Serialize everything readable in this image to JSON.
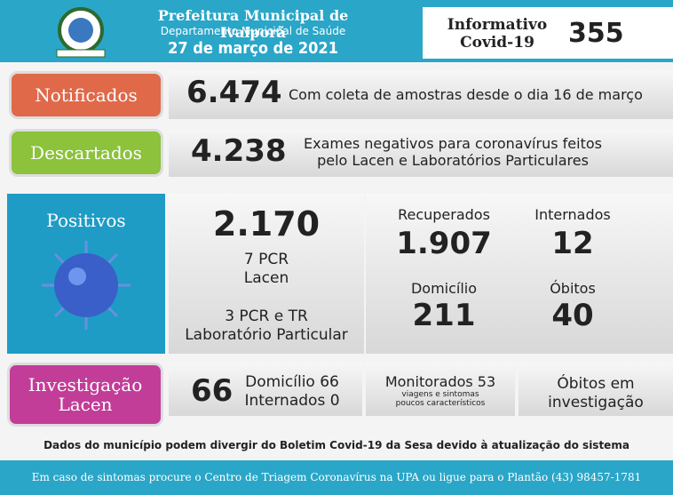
{
  "header": {
    "title": "Prefeitura Municipal de Ivaiporã",
    "department": "Departamento Municipal de Saúde",
    "date": "27 de março de 2021",
    "bulletin": [
      "Informativo",
      "Covid-19"
    ],
    "number": "355"
  },
  "notificados": {
    "label": "Notificados",
    "value": "6.474",
    "note": "Com coleta de amostras desde o dia 16 de março"
  },
  "descartados": {
    "label": "Descartados",
    "value": "4.238",
    "note": [
      "Exames negativos para coronavírus feitos",
      "pelo Lacen e Laboratórios Particulares"
    ]
  },
  "positivos": {
    "label": "Positivos",
    "value": "2.170",
    "detail": [
      "7 PCR",
      "Lacen",
      "3 PCR e TR",
      "Laboratório Particular"
    ],
    "recuperados": {
      "label": "Recuperados",
      "value": "1.907"
    },
    "internados": {
      "label": "Internados",
      "value": "12"
    },
    "domicilio": {
      "label": "Domicílio",
      "value": "211"
    },
    "obitos": {
      "label": "Óbitos",
      "value": "40"
    }
  },
  "investigacao": {
    "label": [
      "Investigação",
      "Lacen"
    ],
    "value": "66",
    "detail": [
      "Domicílio 66",
      "Internados 0"
    ],
    "monitorados": [
      "Monitorados 53",
      "viagens e sintomas",
      "poucos característicos"
    ],
    "obitos": [
      "Óbitos em",
      "investigação"
    ]
  },
  "footnote": "Dados do município podem divergir do Boletim Covid-19 da Sesa devido à atualização do sistema",
  "footer": "Em caso de sintomas procure o Centro de Triagem Coronavírus na UPA ou ligue para o Plantão (43) 98457-1781"
}
